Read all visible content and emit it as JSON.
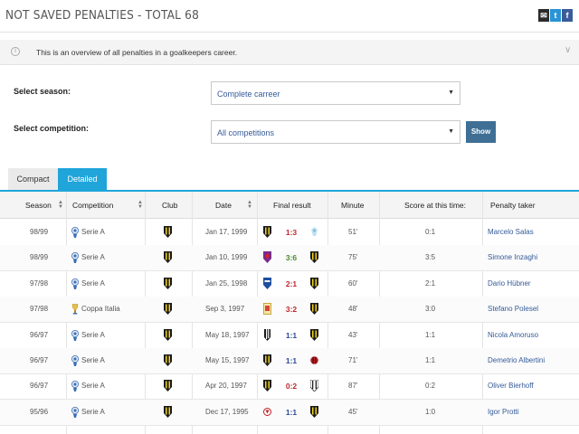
{
  "page": {
    "title": "NOT SAVED PENALTIES - TOTAL 68",
    "info_text": "This is an overview of all penalties in a goalkeepers career.",
    "share": {
      "mail": "✉",
      "twitter": "t",
      "facebook": "f"
    }
  },
  "filters": {
    "season_label": "Select season:",
    "season_value": "Complete carreer",
    "competition_label": "Select competition:",
    "competition_value": "All competitions",
    "show_button": "Show"
  },
  "tabs": [
    {
      "label": "Compact",
      "active": false
    },
    {
      "label": "Detailed",
      "active": true
    }
  ],
  "columns": {
    "season": "Season",
    "competition": "Competition",
    "club": "Club",
    "date": "Date",
    "final_result": "Final result",
    "minute": "Minute",
    "score_at_time": "Score at this time:",
    "penalty_taker": "Penalty taker"
  },
  "rows": [
    {
      "season": "98/99",
      "competition": "Serie A",
      "date": "Jan 17, 1999",
      "result": "1:3",
      "result_color": "red",
      "minute": "51'",
      "score": "0:1",
      "taker": "Marcelo Salas",
      "home_icon": "parma",
      "away_icon": "lazio"
    },
    {
      "season": "98/99",
      "competition": "Serie A",
      "date": "Jan 10, 1999",
      "result": "3:6",
      "result_color": "green",
      "minute": "75'",
      "score": "3:5",
      "taker": "Simone Inzaghi",
      "home_icon": "fiorentina",
      "away_icon": "parma"
    },
    {
      "season": "97/98",
      "competition": "Serie A",
      "date": "Jan 25, 1998",
      "result": "2:1",
      "result_color": "red",
      "minute": "60'",
      "score": "2:1",
      "taker": "Dario Hübner",
      "home_icon": "brescia",
      "away_icon": "parma"
    },
    {
      "season": "97/98",
      "competition": "Coppa Italia",
      "date": "Sep 3, 1997",
      "result": "3:2",
      "result_color": "red",
      "minute": "48'",
      "score": "3:0",
      "taker": "Stefano Polesel",
      "home_icon": "ravenna",
      "away_icon": "parma"
    },
    {
      "season": "96/97",
      "competition": "Serie A",
      "date": "May 18, 1997",
      "result": "1:1",
      "result_color": "blue",
      "minute": "43'",
      "score": "1:1",
      "taker": "Nicola Amoruso",
      "home_icon": "juventus",
      "away_icon": "parma"
    },
    {
      "season": "96/97",
      "competition": "Serie A",
      "date": "May 15, 1997",
      "result": "1:1",
      "result_color": "blue",
      "minute": "71'",
      "score": "1:1",
      "taker": "Demetrio Albertini",
      "home_icon": "parma",
      "away_icon": "milan"
    },
    {
      "season": "96/97",
      "competition": "Serie A",
      "date": "Apr 20, 1997",
      "result": "0:2",
      "result_color": "red",
      "minute": "87'",
      "score": "0:2",
      "taker": "Oliver Bierhoff",
      "home_icon": "parma",
      "away_icon": "udinese"
    },
    {
      "season": "95/96",
      "competition": "Serie A",
      "date": "Dec 17, 1995",
      "result": "1:1",
      "result_color": "blue",
      "minute": "45'",
      "score": "1:0",
      "taker": "Igor Protti",
      "home_icon": "bari",
      "away_icon": "parma"
    }
  ],
  "colors": {
    "accent": "#1fa5da",
    "button": "#3f6f95",
    "link": "#345a99",
    "loss": "#c0272d",
    "win": "#4e8a2b",
    "draw": "#2b4a9a"
  }
}
